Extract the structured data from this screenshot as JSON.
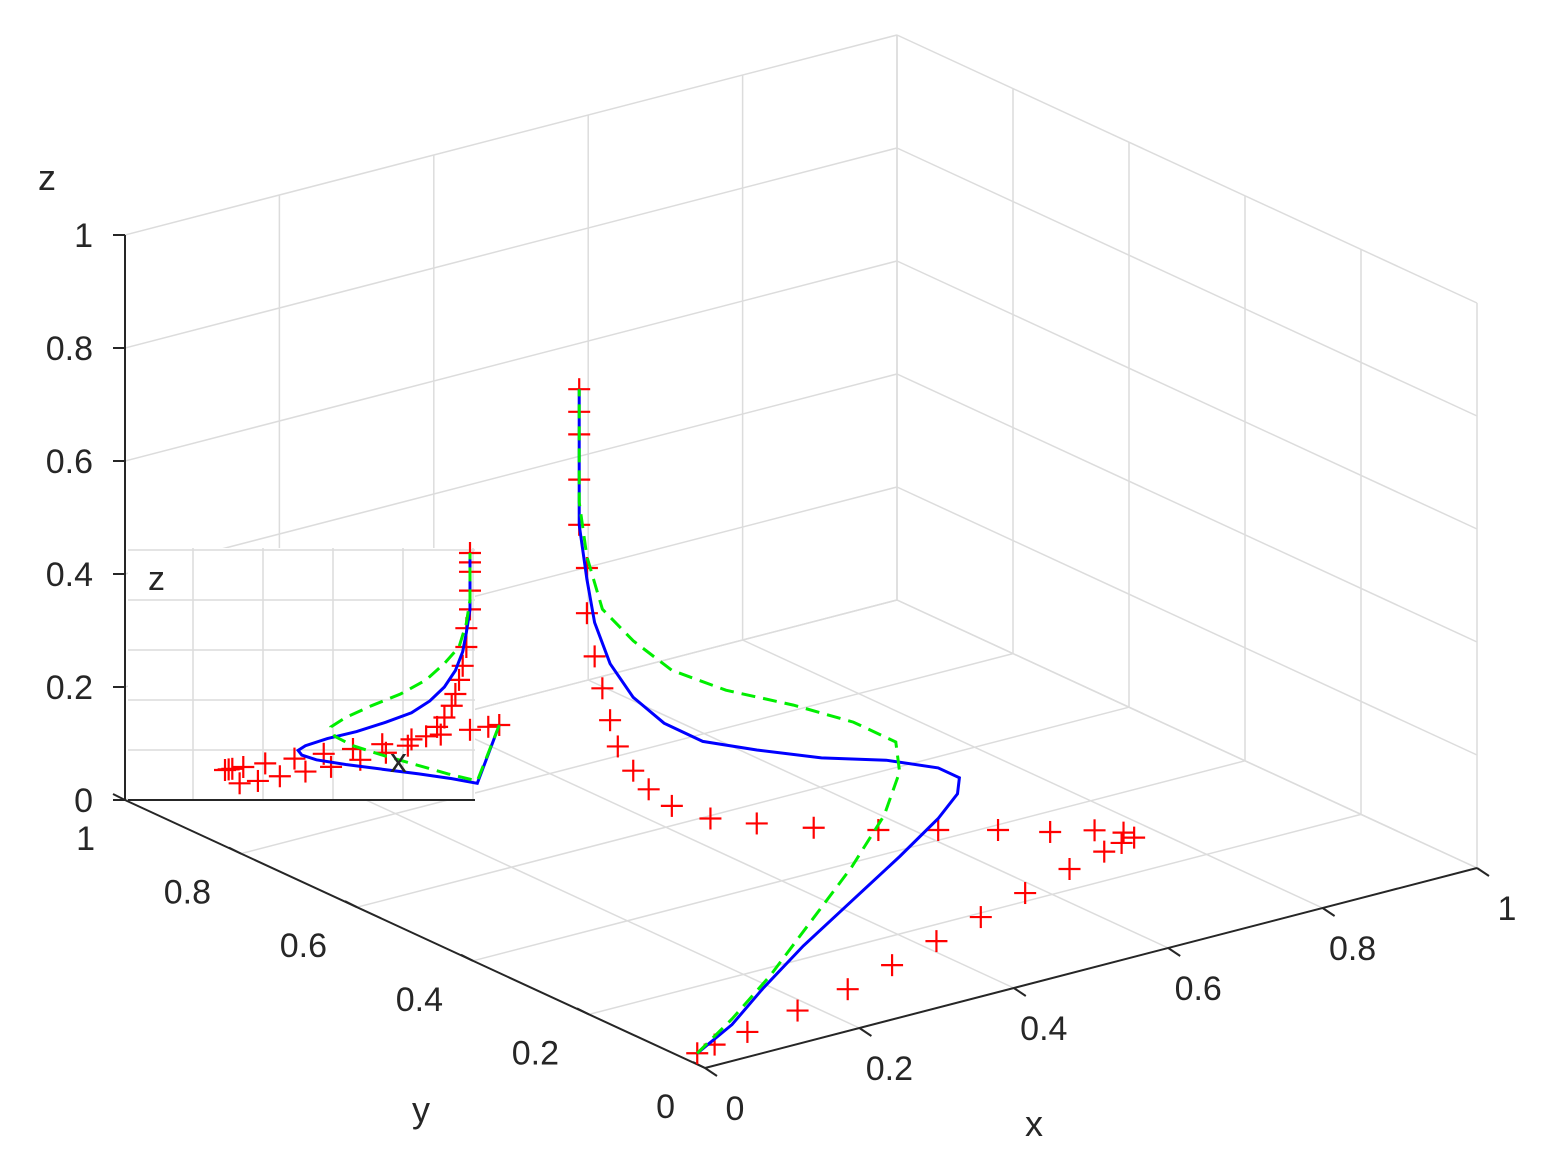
{
  "chart_data": {
    "type": "line3d",
    "title": "",
    "xlabel": "x",
    "ylabel": "y",
    "zlabel": "z",
    "xlim": [
      0,
      1
    ],
    "ylim": [
      0,
      1
    ],
    "zlim": [
      0,
      1
    ],
    "xticks": [
      "0",
      "0.2",
      "0.4",
      "0.6",
      "0.8",
      "1"
    ],
    "yticks": [
      "0",
      "0.2",
      "0.4",
      "0.6",
      "0.8",
      "1"
    ],
    "zticks": [
      "0",
      "0.2",
      "0.4",
      "0.6",
      "0.8",
      "1"
    ],
    "grid": true,
    "series": [
      {
        "style": "marker-plus",
        "color": "#ff0000",
        "points": [
          [
            0.02,
            0.04,
            0.0
          ],
          [
            0.05,
            0.05,
            0.0
          ],
          [
            0.1,
            0.06,
            0.0
          ],
          [
            0.18,
            0.08,
            0.0
          ],
          [
            0.26,
            0.1,
            0.0
          ],
          [
            0.34,
            0.13,
            0.0
          ],
          [
            0.42,
            0.16,
            0.0
          ],
          [
            0.5,
            0.19,
            0.0
          ],
          [
            0.58,
            0.22,
            0.0
          ],
          [
            0.66,
            0.25,
            0.0
          ],
          [
            0.72,
            0.27,
            0.0
          ],
          [
            0.75,
            0.28,
            0.0
          ],
          [
            0.77,
            0.285,
            0.0
          ],
          [
            0.76,
            0.29,
            0.01
          ],
          [
            0.73,
            0.3,
            0.02
          ],
          [
            0.68,
            0.31,
            0.03
          ],
          [
            0.62,
            0.32,
            0.05
          ],
          [
            0.55,
            0.33,
            0.07
          ],
          [
            0.48,
            0.34,
            0.09
          ],
          [
            0.4,
            0.345,
            0.12
          ],
          [
            0.33,
            0.35,
            0.15
          ],
          [
            0.27,
            0.35,
            0.18
          ],
          [
            0.22,
            0.35,
            0.22
          ],
          [
            0.19,
            0.35,
            0.26
          ],
          [
            0.17,
            0.35,
            0.3
          ],
          [
            0.15,
            0.35,
            0.35
          ],
          [
            0.14,
            0.35,
            0.4
          ],
          [
            0.13,
            0.35,
            0.46
          ],
          [
            0.12,
            0.35,
            0.52
          ],
          [
            0.11,
            0.35,
            0.6
          ],
          [
            0.11,
            0.35,
            0.68
          ],
          [
            0.1,
            0.35,
            0.76
          ],
          [
            0.1,
            0.35,
            0.84
          ],
          [
            0.1,
            0.35,
            0.92
          ],
          [
            0.1,
            0.35,
            0.96
          ],
          [
            0.1,
            0.35,
            1.0
          ]
        ]
      },
      {
        "style": "solid",
        "color": "#0000ff",
        "points": [
          [
            0.02,
            0.04,
            0.0
          ],
          [
            0.08,
            0.06,
            0.02
          ],
          [
            0.15,
            0.1,
            0.04
          ],
          [
            0.24,
            0.15,
            0.06
          ],
          [
            0.34,
            0.2,
            0.08
          ],
          [
            0.44,
            0.25,
            0.1
          ],
          [
            0.52,
            0.29,
            0.12
          ],
          [
            0.56,
            0.31,
            0.14
          ],
          [
            0.57,
            0.32,
            0.16
          ],
          [
            0.55,
            0.33,
            0.18
          ],
          [
            0.49,
            0.34,
            0.21
          ],
          [
            0.41,
            0.345,
            0.24
          ],
          [
            0.33,
            0.35,
            0.28
          ],
          [
            0.26,
            0.35,
            0.32
          ],
          [
            0.21,
            0.35,
            0.37
          ],
          [
            0.17,
            0.35,
            0.43
          ],
          [
            0.14,
            0.35,
            0.5
          ],
          [
            0.12,
            0.35,
            0.58
          ],
          [
            0.11,
            0.35,
            0.66
          ],
          [
            0.1,
            0.35,
            0.76
          ],
          [
            0.1,
            0.35,
            0.88
          ],
          [
            0.1,
            0.35,
            1.0
          ]
        ]
      },
      {
        "style": "dashed",
        "color": "#00ee00",
        "points": [
          [
            0.02,
            0.04,
            0.0
          ],
          [
            0.08,
            0.06,
            0.03
          ],
          [
            0.16,
            0.1,
            0.06
          ],
          [
            0.25,
            0.15,
            0.1
          ],
          [
            0.34,
            0.2,
            0.14
          ],
          [
            0.42,
            0.25,
            0.18
          ],
          [
            0.47,
            0.29,
            0.22
          ],
          [
            0.48,
            0.31,
            0.26
          ],
          [
            0.44,
            0.33,
            0.3
          ],
          [
            0.37,
            0.34,
            0.35
          ],
          [
            0.29,
            0.35,
            0.4
          ],
          [
            0.22,
            0.35,
            0.46
          ],
          [
            0.17,
            0.35,
            0.53
          ],
          [
            0.13,
            0.35,
            0.6
          ],
          [
            0.11,
            0.35,
            0.7
          ],
          [
            0.1,
            0.35,
            0.8
          ],
          [
            0.1,
            0.35,
            0.9
          ],
          [
            0.1,
            0.35,
            1.0
          ]
        ]
      }
    ],
    "inset": {
      "zlabel": "z",
      "xlabel": "x"
    }
  }
}
